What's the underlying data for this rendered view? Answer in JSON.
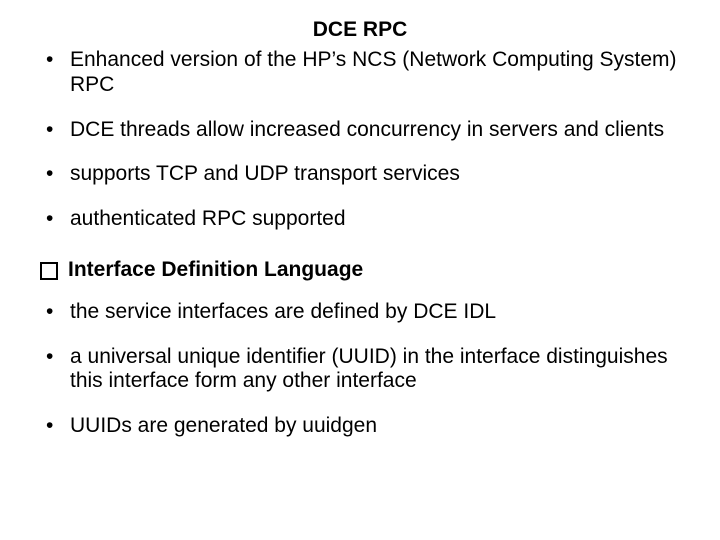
{
  "colors": {
    "background": "#ffffff",
    "text": "#000000"
  },
  "fonts": {
    "family": "Arial",
    "title_size_pt": 21,
    "body_size_pt": 21,
    "section_size_pt": 21
  },
  "title": "DCE RPC",
  "bullets_top": [
    "Enhanced version of the HP’s NCS (Network Computing System) RPC",
    "DCE threads allow increased concurrency in servers and clients",
    "supports TCP and UDP transport services",
    "authenticated RPC supported"
  ],
  "section_heading": "Interface Definition Language",
  "bullets_bottom": [
    "the service interfaces are defined by DCE IDL",
    "a universal unique identifier (UUID) in the interface distinguishes this interface form any other interface",
    "UUIDs are generated by uuidgen"
  ]
}
